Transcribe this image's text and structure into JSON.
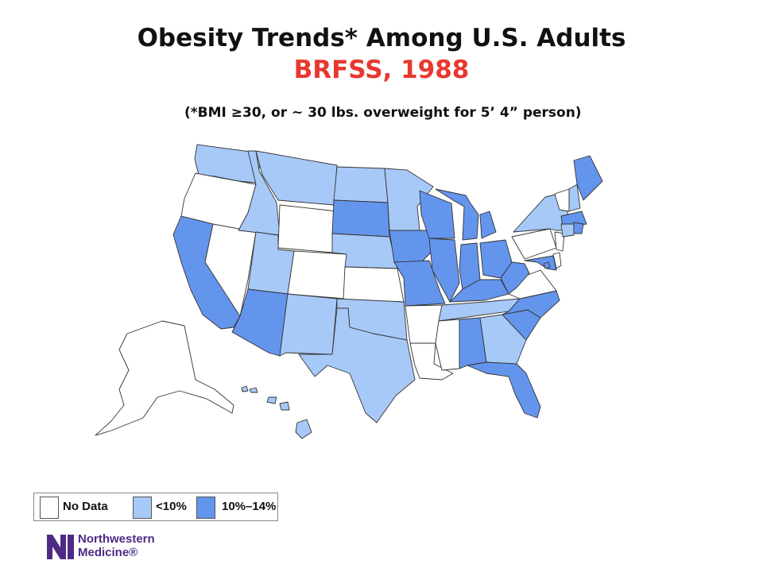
{
  "title": "Obesity Trends* Among U.S. Adults",
  "subtitle": "BRFSS, 1988",
  "note": "(*BMI ≥30, or ~ 30 lbs. overweight for 5’ 4” person)",
  "colors": {
    "title": "#111111",
    "subtitle": "#e8382f",
    "no_data": "#ffffff",
    "lt10": "#a7c9f7",
    "p10_14": "#6495ed",
    "logo": "#4e2a84"
  },
  "legend": [
    {
      "key": "no_data",
      "label": "No Data"
    },
    {
      "key": "lt10",
      "label": "<10%"
    },
    {
      "key": "p10_14",
      "label": "10%–14%"
    }
  ],
  "states": {
    "WA": "lt10",
    "OR": "no_data",
    "CA": "p10_14",
    "NV": "no_data",
    "ID": "lt10",
    "MT": "lt10",
    "WY": "no_data",
    "UT": "lt10",
    "AZ": "p10_14",
    "CO": "no_data",
    "NM": "lt10",
    "ND": "lt10",
    "SD": "p10_14",
    "NE": "lt10",
    "KS": "no_data",
    "OK": "lt10",
    "TX": "lt10",
    "MN": "lt10",
    "IA": "p10_14",
    "MO": "p10_14",
    "AR": "no_data",
    "LA": "no_data",
    "WI": "p10_14",
    "IL": "p10_14",
    "MI": "p10_14",
    "IN": "p10_14",
    "OH": "p10_14",
    "KY": "p10_14",
    "TN": "lt10",
    "MS": "no_data",
    "AL": "p10_14",
    "GA": "lt10",
    "FL": "p10_14",
    "SC": "p10_14",
    "NC": "p10_14",
    "VA": "no_data",
    "WV": "p10_14",
    "MD": "p10_14",
    "DE": "no_data",
    "NJ": "no_data",
    "PA": "no_data",
    "NY": "lt10",
    "VT": "no_data",
    "NH": "lt10",
    "ME": "p10_14",
    "MA": "p10_14",
    "CT": "lt10",
    "RI": "p10_14",
    "AK": "no_data",
    "HI": "lt10",
    "DC": "p10_14"
  },
  "logo": {
    "line1": "Northwestern",
    "line2": "Medicine®"
  }
}
